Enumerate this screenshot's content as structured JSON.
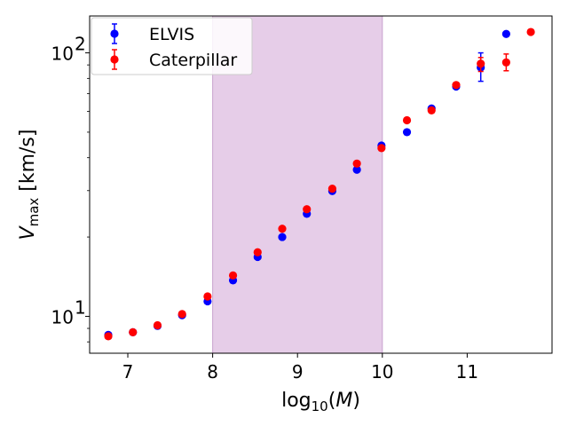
{
  "chart_data": {
    "type": "scatter",
    "title": "",
    "xlabel": "log10(M)",
    "xlabel_main": "log",
    "xlabel_sub": "10",
    "xlabel_arg": "M",
    "ylabel": "V_max [km/s]",
    "ylabel_main": "V",
    "ylabel_sub": "max",
    "ylabel_unit": " [km/s]",
    "xlim": [
      6.55,
      12.0
    ],
    "ylim_log10": [
      0.86,
      2.14
    ],
    "yscale": "log",
    "x_ticks": [
      {
        "value": 7,
        "label": "7"
      },
      {
        "value": 8,
        "label": "8"
      },
      {
        "value": 9,
        "label": "9"
      },
      {
        "value": 10,
        "label": "10"
      },
      {
        "value": 11,
        "label": "11"
      }
    ],
    "y_ticks": [
      {
        "value": 10,
        "base": "10",
        "exp": "1"
      },
      {
        "value": 100,
        "base": "10",
        "exp": "2"
      }
    ],
    "shaded_region": {
      "x_from": 8.0,
      "x_to": 10.0,
      "color": "#e6cde8",
      "edge": "#c9a3cf"
    },
    "legend_position": "upper-left",
    "series": [
      {
        "name": "ELVIS",
        "color": "#0000ff",
        "points": [
          {
            "x": 6.77,
            "y": 8.5
          },
          {
            "x": 7.06,
            "y": 8.7
          },
          {
            "x": 7.35,
            "y": 9.2
          },
          {
            "x": 7.64,
            "y": 10.1
          },
          {
            "x": 7.94,
            "y": 11.4
          },
          {
            "x": 8.24,
            "y": 13.7
          },
          {
            "x": 8.53,
            "y": 16.8
          },
          {
            "x": 8.82,
            "y": 20.0
          },
          {
            "x": 9.11,
            "y": 24.5
          },
          {
            "x": 9.41,
            "y": 29.9
          },
          {
            "x": 9.7,
            "y": 36.0
          },
          {
            "x": 9.99,
            "y": 44.5
          },
          {
            "x": 10.29,
            "y": 50.0
          },
          {
            "x": 10.58,
            "y": 61.5
          },
          {
            "x": 10.87,
            "y": 74.5
          },
          {
            "x": 11.16,
            "y": 88.0,
            "err_low": 78.0,
            "err_high": 100.0
          },
          {
            "x": 11.46,
            "y": 118.0
          }
        ]
      },
      {
        "name": "Caterpillar",
        "color": "#ff0000",
        "points": [
          {
            "x": 6.77,
            "y": 8.4
          },
          {
            "x": 7.06,
            "y": 8.7
          },
          {
            "x": 7.35,
            "y": 9.25
          },
          {
            "x": 7.64,
            "y": 10.2
          },
          {
            "x": 7.94,
            "y": 11.9
          },
          {
            "x": 8.24,
            "y": 14.3
          },
          {
            "x": 8.53,
            "y": 17.5
          },
          {
            "x": 8.82,
            "y": 21.5
          },
          {
            "x": 9.11,
            "y": 25.5
          },
          {
            "x": 9.41,
            "y": 30.5
          },
          {
            "x": 9.7,
            "y": 38.0
          },
          {
            "x": 9.99,
            "y": 43.5
          },
          {
            "x": 10.29,
            "y": 55.5
          },
          {
            "x": 10.58,
            "y": 60.5
          },
          {
            "x": 10.87,
            "y": 75.5
          },
          {
            "x": 11.16,
            "y": 91.0,
            "err_low": 85.0,
            "err_high": 96.0
          },
          {
            "x": 11.46,
            "y": 92.0,
            "err_low": 85.5,
            "err_high": 99.0
          },
          {
            "x": 11.75,
            "y": 120.0
          }
        ]
      }
    ]
  }
}
